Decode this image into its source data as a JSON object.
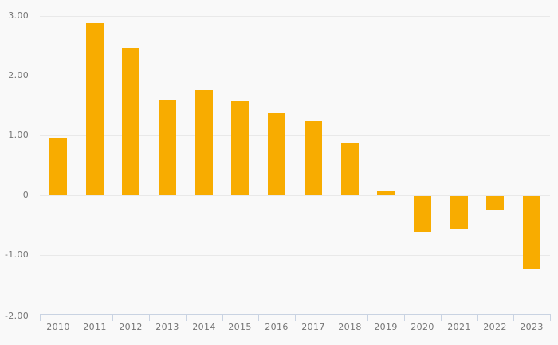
{
  "chart_data": {
    "type": "bar",
    "title": "",
    "xlabel": "",
    "ylabel": "",
    "categories": [
      "2010",
      "2011",
      "2012",
      "2013",
      "2014",
      "2015",
      "2016",
      "2017",
      "2018",
      "2019",
      "2020",
      "2021",
      "2022",
      "2023"
    ],
    "values": [
      0.96,
      2.88,
      2.46,
      1.59,
      1.76,
      1.57,
      1.38,
      1.24,
      0.87,
      0.06,
      -0.6,
      -0.55,
      -0.24,
      -1.21
    ],
    "ylim": [
      -2.0,
      3.0
    ],
    "y_ticks": [
      {
        "value": 3,
        "label": "3.00"
      },
      {
        "value": 2,
        "label": "2.00"
      },
      {
        "value": 1,
        "label": "1.00"
      },
      {
        "value": 0,
        "label": "0"
      },
      {
        "value": -1,
        "label": "-1.00"
      },
      {
        "value": -2,
        "label": "-2.00"
      }
    ],
    "grid": true,
    "legend_position": "none",
    "colors": {
      "background": "#f9f9f9",
      "bar": "#f8ac00",
      "gridline": "#e9e9e9",
      "axis_line": "#c9d3e2",
      "tick_label": "#757575"
    }
  }
}
